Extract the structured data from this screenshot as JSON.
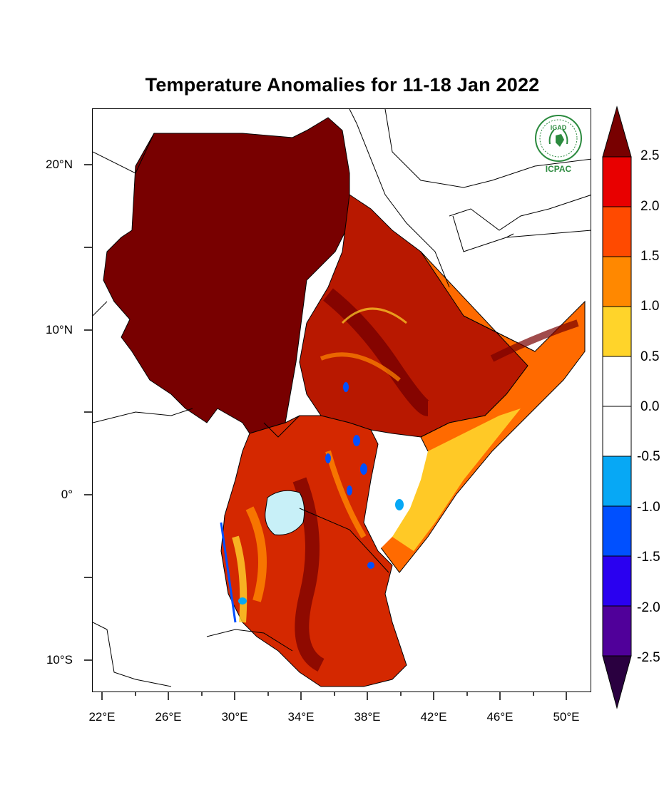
{
  "title": "Temperature Anomalies for 11-18 Jan 2022",
  "logo": {
    "org_top": "IGAD",
    "org_bottom": "ICPAC",
    "color": "#2b8a3e"
  },
  "map": {
    "lat_labels": [
      "20°N",
      "10°N",
      "0°",
      "10°S"
    ],
    "lon_labels": [
      "22°E",
      "26°E",
      "30°E",
      "34°E",
      "38°E",
      "42°E",
      "46°E",
      "50°E"
    ],
    "extent": {
      "lon": [
        21.5,
        51.5
      ],
      "lat": [
        -12,
        23.2
      ]
    },
    "lake_victoria_color": "#c8f0f8",
    "regions": [
      {
        "name": "Sudan / South Sudan",
        "anomaly": "2.5+"
      },
      {
        "name": "Ethiopia highlands",
        "anomaly": "1.5 to 2.5+"
      },
      {
        "name": "Somalia / NE Kenya",
        "anomaly": "0.0 to 1.5"
      },
      {
        "name": "Tanzania / Uganda / Western Kenya",
        "anomaly": "1.0 to 2.5+"
      }
    ]
  },
  "colorbar": {
    "labels": [
      "2.5",
      "2.0",
      "1.5",
      "1.0",
      "0.5",
      "0.0",
      "-0.5",
      "-1.0",
      "-1.5",
      "-2.0",
      "-2.5"
    ],
    "colors": [
      "#780000",
      "#e80000",
      "#ff4a00",
      "#ff8800",
      "#ffd42a",
      "#ffffff",
      "#ffffff",
      "#07a8f5",
      "#0050ff",
      "#2a00f0",
      "#50009a",
      "#2a0040"
    ]
  }
}
